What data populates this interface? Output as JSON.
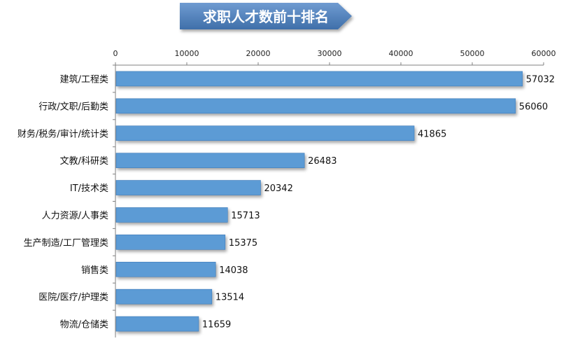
{
  "chart_data": {
    "type": "bar",
    "orientation": "horizontal",
    "title": "求职人才数前十排名",
    "categories": [
      "建筑/工程类",
      "行政/文职/后勤类",
      "财务/税务/审计/统计类",
      "文教/科研类",
      "IT/技术类",
      "人力资源/人事类",
      "生产制造/工厂管理类",
      "销售类",
      "医院/医疗/护理类",
      "物流/仓储类"
    ],
    "values": [
      57032,
      56060,
      41865,
      26483,
      20342,
      15713,
      15375,
      14038,
      13514,
      11659
    ],
    "xlim": [
      0,
      60000
    ],
    "x_ticks": [
      "0",
      "10000",
      "20000",
      "30000",
      "40000",
      "50000",
      "60000"
    ],
    "x_axis_position": "top",
    "grid": false,
    "legend": "none",
    "data_labels": true
  },
  "colors": {
    "bar": "#5b9bd5",
    "bar_edge": "#3d7ab8",
    "title_banner": "#4a7ab5",
    "axis": "#808080"
  }
}
